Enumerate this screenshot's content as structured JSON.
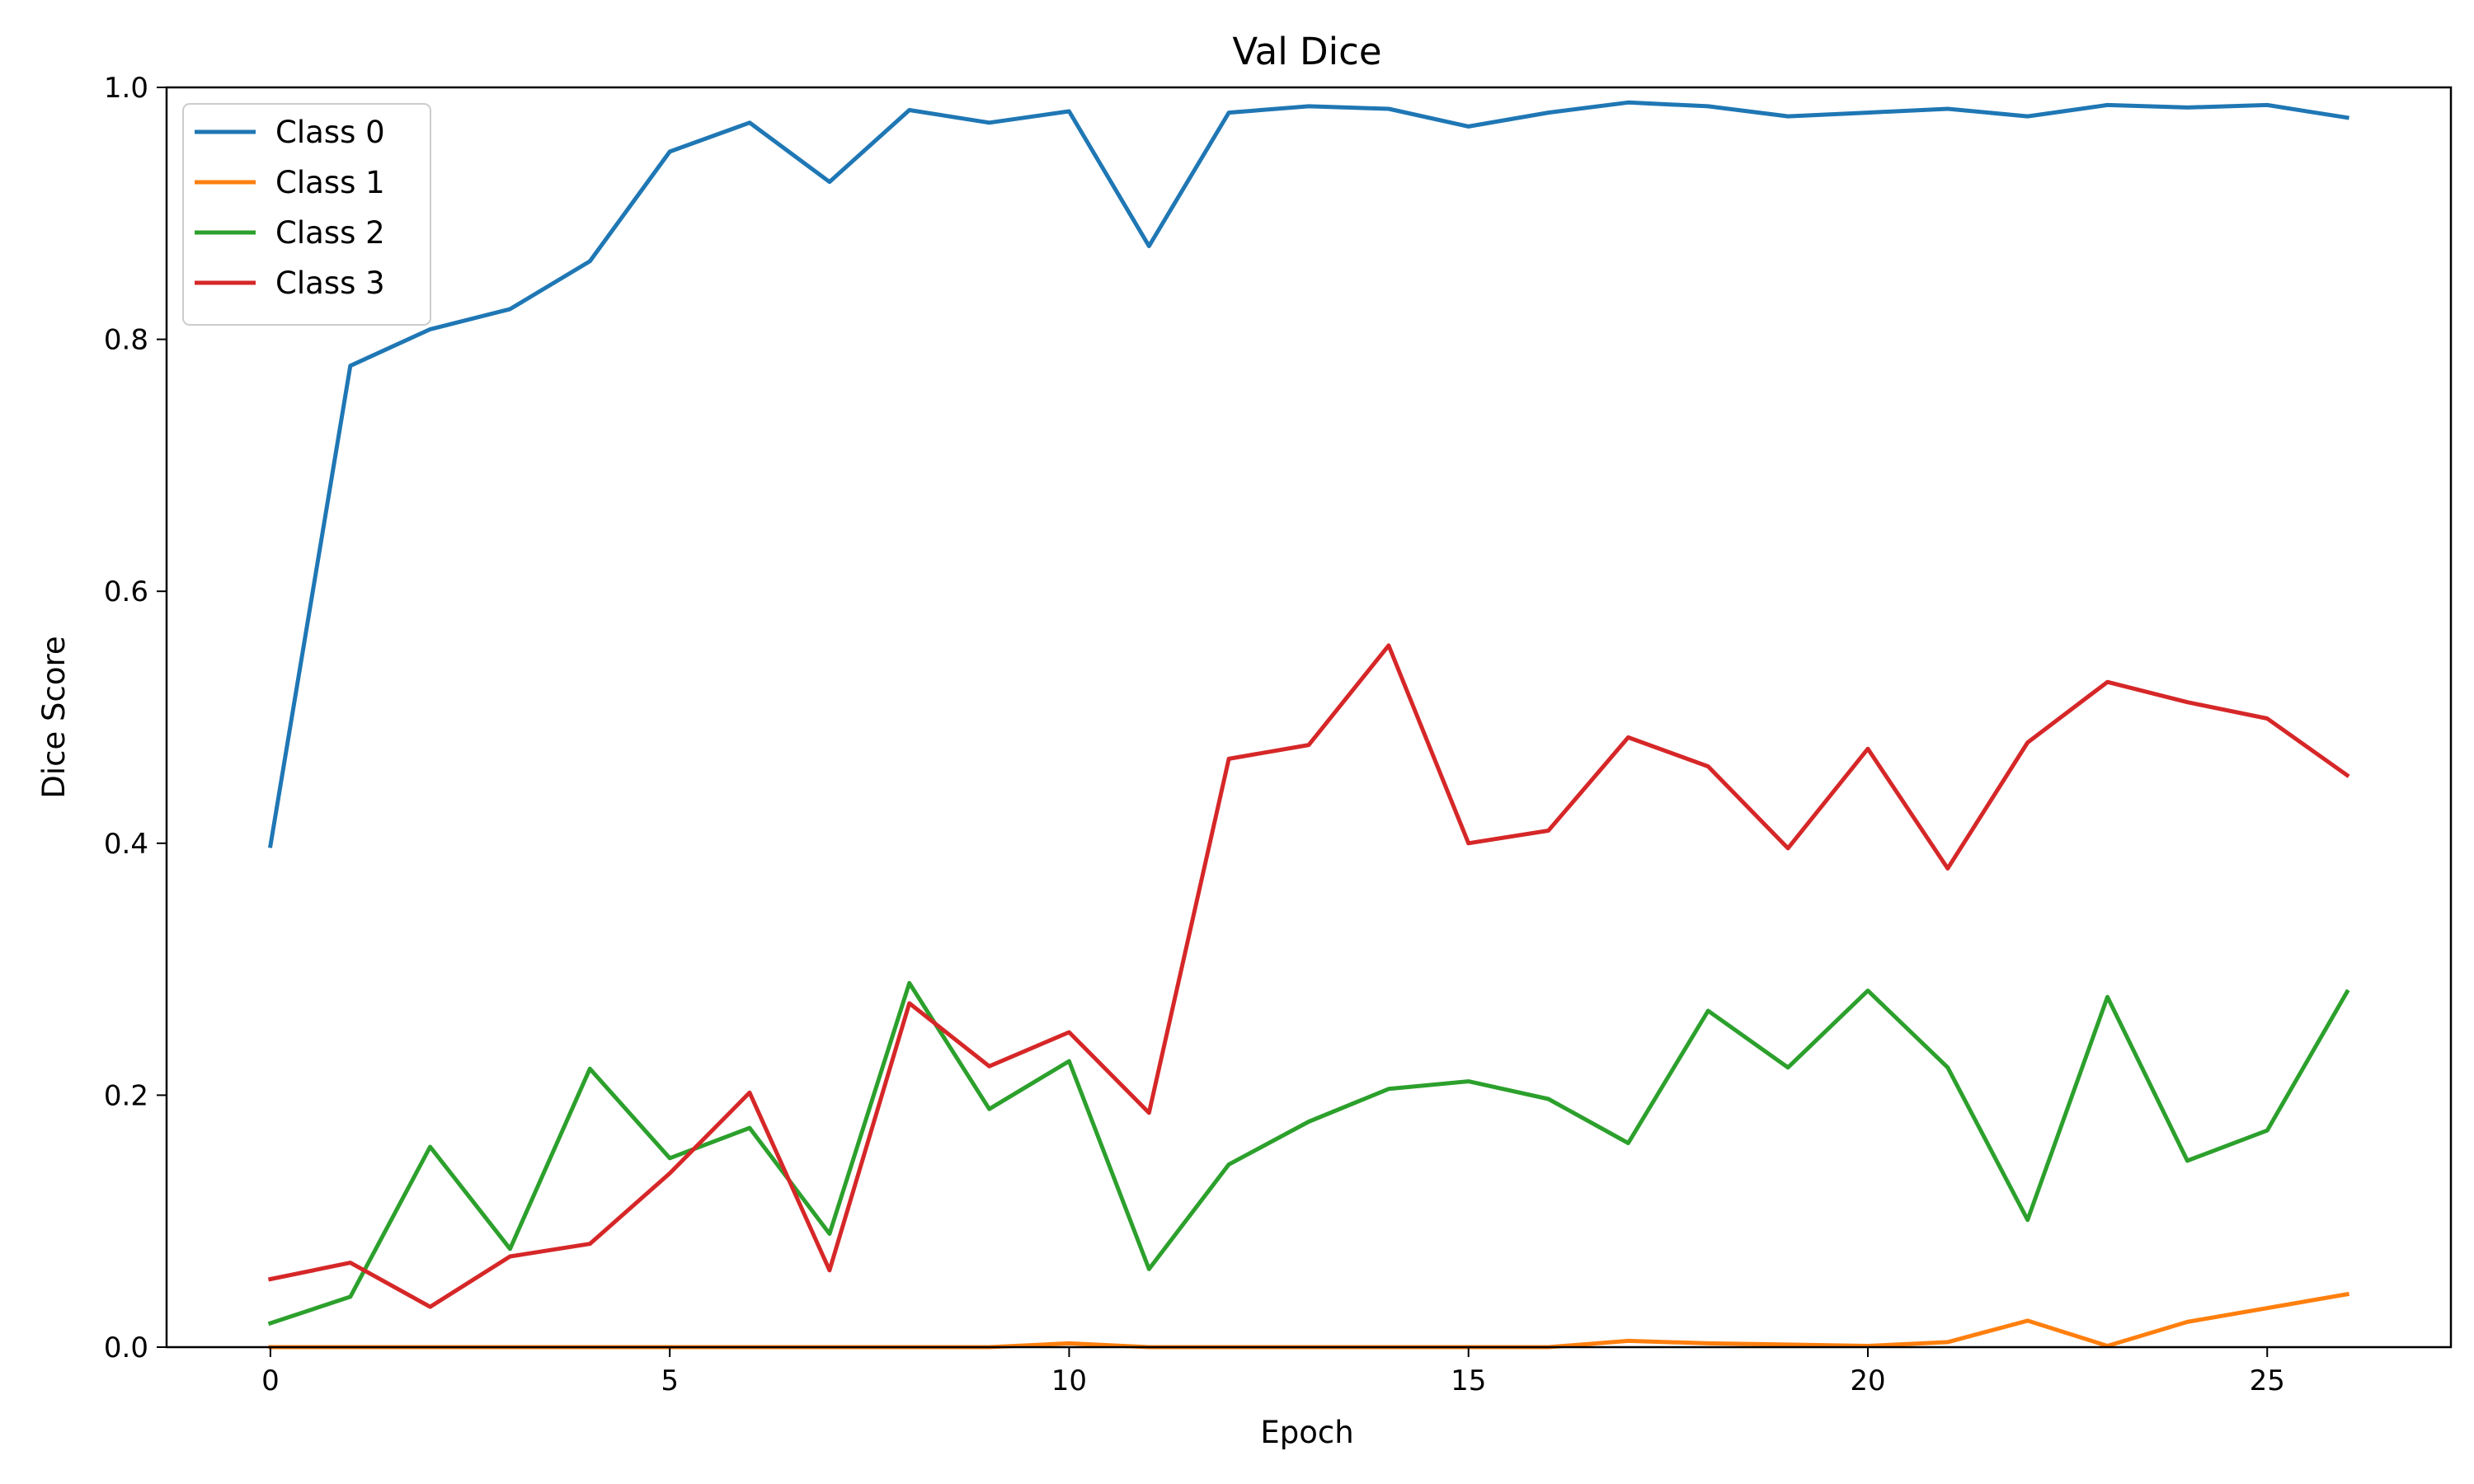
{
  "chart_data": {
    "type": "line",
    "title": "Val Dice",
    "xlabel": "Epoch",
    "ylabel": "Dice Score",
    "xlim": [
      -1.3,
      27.3
    ],
    "ylim": [
      0.0,
      1.0
    ],
    "xticks": [
      0,
      5,
      10,
      15,
      20,
      25
    ],
    "yticks": [
      0.0,
      0.2,
      0.4,
      0.6,
      0.8,
      1.0
    ],
    "grid": false,
    "legend_position": "top-left",
    "x": [
      0,
      1,
      2,
      3,
      4,
      5,
      6,
      7,
      8,
      9,
      10,
      11,
      12,
      13,
      14,
      15,
      16,
      17,
      18,
      19,
      20,
      21,
      22,
      23,
      24,
      25,
      26
    ],
    "series": [
      {
        "name": "Class 0",
        "color": "#1f77b4",
        "values": [
          0.398,
          0.779,
          0.808,
          0.824,
          0.862,
          0.949,
          0.972,
          0.925,
          0.982,
          0.972,
          0.981,
          0.874,
          0.98,
          0.985,
          0.983,
          0.969,
          0.98,
          0.988,
          0.985,
          0.977,
          0.98,
          0.983,
          0.977,
          0.986,
          0.984,
          0.986,
          0.976
        ]
      },
      {
        "name": "Class 1",
        "color": "#ff7f0e",
        "values": [
          0.0,
          0.0,
          0.0,
          0.0,
          0.0,
          0.0,
          0.0,
          0.0,
          0.0,
          0.0,
          0.003,
          0.0,
          0.0,
          0.0,
          0.0,
          0.0,
          0.0,
          0.005,
          0.003,
          0.002,
          0.001,
          0.004,
          0.021,
          0.001,
          0.02,
          0.031,
          0.042
        ]
      },
      {
        "name": "Class 2",
        "color": "#2ca02c",
        "values": [
          0.019,
          0.04,
          0.159,
          0.078,
          0.221,
          0.15,
          0.174,
          0.09,
          0.289,
          0.189,
          0.227,
          0.062,
          0.145,
          0.179,
          0.205,
          0.211,
          0.197,
          0.162,
          0.267,
          0.222,
          0.283,
          0.222,
          0.101,
          0.278,
          0.148,
          0.172,
          0.282
        ]
      },
      {
        "name": "Class 3",
        "color": "#d62728",
        "values": [
          0.054,
          0.067,
          0.032,
          0.072,
          0.082,
          0.138,
          0.202,
          0.061,
          0.273,
          0.223,
          0.25,
          0.186,
          0.467,
          0.478,
          0.557,
          0.4,
          0.41,
          0.484,
          0.461,
          0.396,
          0.475,
          0.38,
          0.48,
          0.528,
          0.512,
          0.499,
          0.454
        ]
      }
    ]
  }
}
